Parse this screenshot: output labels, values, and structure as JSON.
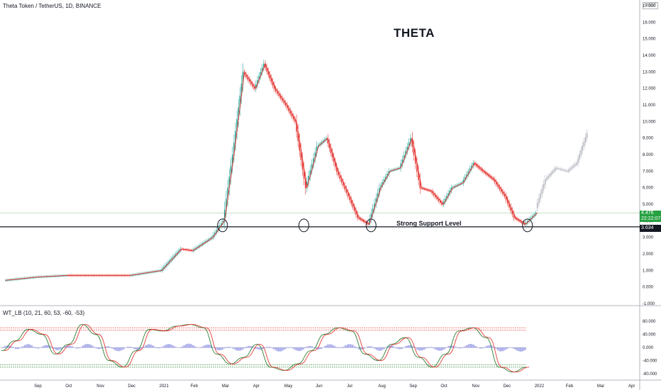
{
  "header": {
    "symbol": "Theta Token / TetherUS, 1D, BINANCE",
    "indicator": "WT_LB (10, 21, 60, 53, -60, -53)",
    "currency_badge": "USDT"
  },
  "annotations": {
    "title": "THETA",
    "support_label": "Strong Support Level",
    "current_price": "4.476",
    "countdown": "22:22:07",
    "support_price": "3.634"
  },
  "colors": {
    "up": "#26a69a",
    "down": "#e53935",
    "projection": "#b2b5be",
    "support_line": "#131722",
    "ob_line": "#e53935",
    "os_line": "#2e7d32",
    "wt1": "#2e7d32",
    "wt2": "#e53935",
    "histogram": "#7b7fe0"
  },
  "chart_data": [
    {
      "type": "line",
      "title": "THETA",
      "ylim": [
        -1,
        17
      ],
      "y_ticks": [
        "17.000",
        "16.000",
        "15.000",
        "14.000",
        "13.000",
        "12.000",
        "11.000",
        "10.000",
        "9.000",
        "8.000",
        "7.000",
        "6.000",
        "5.000",
        "4.000",
        "3.000",
        "2.000",
        "1.000",
        "0.000",
        "-1.000"
      ],
      "x_labels": [
        "Sep",
        "Oct",
        "Nov",
        "Dec",
        "2021",
        "Feb",
        "Mar",
        "Apr",
        "May",
        "Jun",
        "Jul",
        "Aug",
        "Sep",
        "Oct",
        "Nov",
        "Dec",
        "2022",
        "Feb",
        "Mar",
        "Apr"
      ],
      "support_level": 3.634,
      "current_price": 4.476,
      "series": [
        {
          "x": [
            "2020-08",
            "2020-09",
            "2020-10",
            "2020-11",
            "2020-12",
            "2021-01",
            "2021-01-20",
            "2021-02",
            "2021-02-20",
            "2021-03",
            "2021-03-10",
            "2021-03-20",
            "2021-04",
            "2021-04-10",
            "2021-04-20",
            "2021-05",
            "2021-05-10",
            "2021-05-20",
            "2021-06",
            "2021-06-10",
            "2021-06-20",
            "2021-07",
            "2021-07-10",
            "2021-07-20",
            "2021-08",
            "2021-08-10",
            "2021-08-20",
            "2021-09",
            "2021-09-10",
            "2021-09-20",
            "2021-10",
            "2021-10-10",
            "2021-10-20",
            "2021-11",
            "2021-11-10",
            "2021-11-20",
            "2021-12",
            "2021-12-10",
            "2021-12-20",
            "2021-12-31"
          ],
          "values": [
            0.4,
            0.6,
            0.7,
            0.7,
            0.7,
            1.0,
            2.3,
            2.2,
            3.0,
            4.0,
            8.0,
            13.0,
            12.0,
            13.5,
            12.0,
            11.0,
            10.0,
            6.0,
            8.5,
            9.0,
            7.0,
            5.5,
            4.2,
            3.8,
            6.0,
            7.0,
            7.2,
            9.0,
            6.0,
            5.8,
            5.0,
            6.0,
            6.3,
            7.5,
            7.0,
            6.5,
            5.5,
            4.2,
            3.8,
            4.476
          ]
        },
        {
          "x": [
            "2022-01",
            "2022-01-10",
            "2022-01-20",
            "2022-02",
            "2022-02-10",
            "2022-02-20"
          ],
          "values": [
            4.8,
            6.5,
            7.2,
            7.0,
            7.5,
            9.3
          ]
        }
      ]
    },
    {
      "type": "line",
      "ylim": [
        -95,
        95
      ],
      "y_ticks": [
        "80.000",
        "40.000",
        "0.000",
        "-40.000",
        "-80.000"
      ],
      "overbought": [
        60,
        53
      ],
      "oversold": [
        -60,
        -53
      ],
      "series": [
        {
          "values": [
            -10,
            20,
            55,
            40,
            -20,
            10,
            70,
            40,
            -40,
            -60,
            -10,
            55,
            50,
            65,
            70,
            60,
            -20,
            -50,
            -30,
            10,
            -60,
            -70,
            -50,
            -10,
            40,
            60,
            50,
            -20,
            -40,
            10,
            30,
            -30,
            -60,
            -20,
            50,
            60,
            30,
            -60,
            -75,
            -60
          ]
        }
      ]
    }
  ]
}
